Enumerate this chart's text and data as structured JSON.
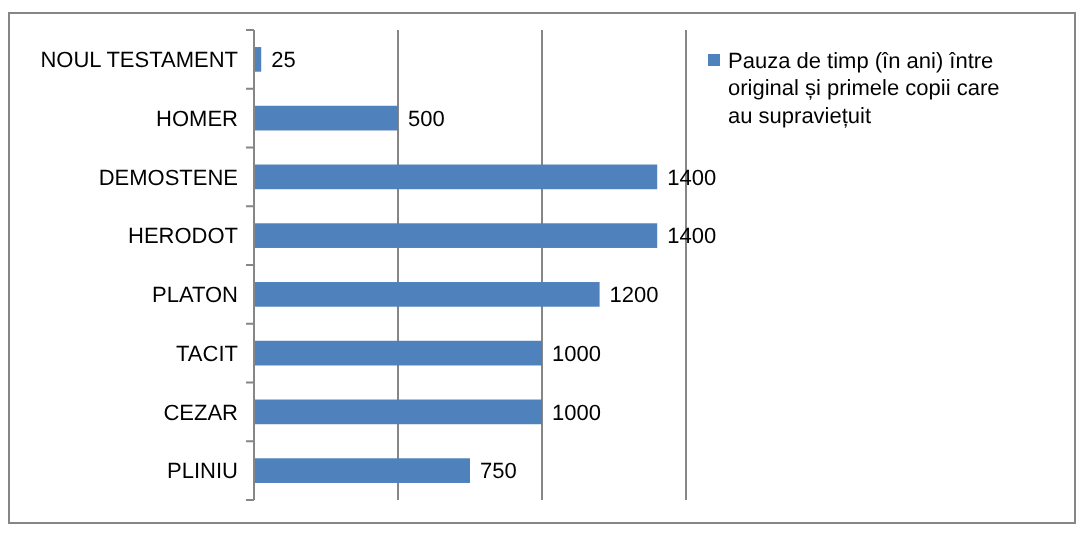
{
  "chart_data": {
    "type": "bar",
    "orientation": "horizontal",
    "categories": [
      "NOUL TESTAMENT",
      "HOMER",
      "DEMOSTENE",
      "HERODOT",
      "PLATON",
      "TACIT",
      "CEZAR",
      "PLINIU"
    ],
    "series": [
      {
        "name": "Pauza de timp (în ani) între original și primele copii care au supraviețuit",
        "color": "#4f81bd",
        "values": [
          25,
          500,
          1400,
          1400,
          1200,
          1000,
          1000,
          750
        ]
      }
    ],
    "xlim": [
      0,
      1500
    ],
    "xticks": [
      {
        "value": 0,
        "label": null
      },
      {
        "value": 500,
        "label": null
      },
      {
        "value": 1000,
        "label": null
      },
      {
        "value": 1500,
        "label": null
      }
    ],
    "tick_labels": "y",
    "grid": "x",
    "legend": "right",
    "data_labels": true
  }
}
